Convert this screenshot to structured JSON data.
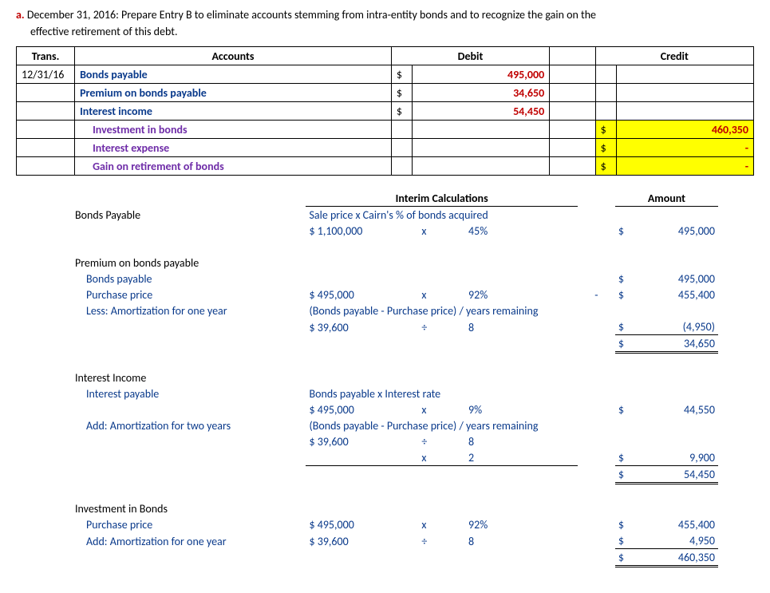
{
  "heading": {
    "label": "a.",
    "line1": "December 31, 2016: Prepare Entry B to eliminate accounts stemming from intra-entity bonds and to recognize the gain on the",
    "line2": "effective retirement of this debt."
  },
  "journal": {
    "headers": {
      "trans": "Trans.",
      "accounts": "Accounts",
      "debit": "Debit",
      "credit": "Credit"
    },
    "date": "12/31/16",
    "rows": [
      {
        "acct": "Bonds payable",
        "style": "blue-bold",
        "debit_sym": "$",
        "debit": "495,000",
        "credit_sym": "",
        "credit": "",
        "indent": false,
        "hl": false
      },
      {
        "acct": "Premium on bonds payable",
        "style": "blue-bold",
        "debit_sym": "$",
        "debit": "34,650",
        "credit_sym": "",
        "credit": "",
        "indent": false,
        "hl": false
      },
      {
        "acct": "Interest income",
        "style": "blue-bold",
        "debit_sym": "$",
        "debit": "54,450",
        "credit_sym": "",
        "credit": "",
        "indent": false,
        "hl": false
      },
      {
        "acct": "Investment in bonds",
        "style": "purple-bold",
        "debit_sym": "",
        "debit": "",
        "credit_sym": "$",
        "credit": "460,350",
        "indent": true,
        "hl": true
      },
      {
        "acct": "Interest expense",
        "style": "purple-bold",
        "debit_sym": "",
        "debit": "",
        "credit_sym": "$",
        "credit": "-",
        "indent": true,
        "hl": true
      },
      {
        "acct": "Gain on retirement of bonds",
        "style": "purple-bold",
        "debit_sym": "",
        "debit": "",
        "credit_sym": "$",
        "credit": "-",
        "indent": true,
        "hl": true
      }
    ]
  },
  "calc": {
    "hdr_interim": "Interim Calculations",
    "hdr_amount": "Amount",
    "bp_title": "Bonds Payable",
    "bp_formula": "Sale price  x  Cairn's % of bonds acquired",
    "bp_v1": "$ 1,100,000",
    "bp_op": "x",
    "bp_v2": "45%",
    "bp_sym": "$",
    "bp_amt": "495,000",
    "pb_title": "Premium on bonds payable",
    "pb_r1": "Bonds payable",
    "pb_r1_sym": "$",
    "pb_r1_amt": "495,000",
    "pb_r2": "Purchase price",
    "pb_r2_v1": "$   495,000",
    "pb_r2_op": "x",
    "pb_r2_v2": "92%",
    "pb_r2_dash": "-",
    "pb_r2_sym": "$",
    "pb_r2_amt": "455,400",
    "pb_r3": "Less: Amortization for one year",
    "pb_r3_formula": "(Bonds payable - Purchase price) / years remaining",
    "pb_r4_v1": "$     39,600",
    "pb_r4_op": "÷",
    "pb_r4_v2": "8",
    "pb_r4_sym": "$",
    "pb_r4_amt": "(4,950)",
    "pb_tot_sym": "$",
    "pb_tot_amt": "34,650",
    "ii_title": "Interest Income",
    "ii_r1": "Interest payable",
    "ii_r1_formula": "Bonds payable   x    Interest rate",
    "ii_r2_v1": "$   495,000",
    "ii_r2_op": "x",
    "ii_r2_v2": "9%",
    "ii_r2_sym": "$",
    "ii_r2_amt": "44,550",
    "ii_r3": "Add: Amortization for two years",
    "ii_r3_formula": "(Bonds payable - Purchase price) / years remaining",
    "ii_r4_v1": "$     39,600",
    "ii_r4_op": "÷",
    "ii_r4_v2": "8",
    "ii_r5_op": "x",
    "ii_r5_v2": "2",
    "ii_r5_sym": "$",
    "ii_r5_amt": "9,900",
    "ii_tot_sym": "$",
    "ii_tot_amt": "54,450",
    "ib_title": "Investment in Bonds",
    "ib_r1": "Purchase price",
    "ib_r1_v1": "$   495,000",
    "ib_r1_op": "x",
    "ib_r1_v2": "92%",
    "ib_r1_sym": "$",
    "ib_r1_amt": "455,400",
    "ib_r2": "Add: Amortization for one year",
    "ib_r2_v1": "$     39,600",
    "ib_r2_op": "÷",
    "ib_r2_v2": "8",
    "ib_r2_sym": "$",
    "ib_r2_amt": "4,950",
    "ib_tot_sym": "$",
    "ib_tot_amt": "460,350"
  }
}
